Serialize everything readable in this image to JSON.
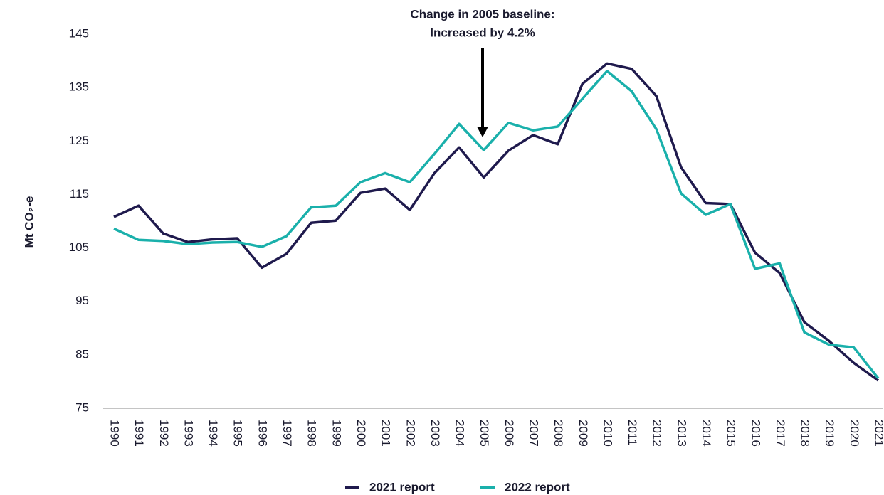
{
  "chart_data": {
    "type": "line",
    "y_label": "Mt CO₂-e",
    "annotation": [
      "Change in 2005 baseline:",
      "Increased by 4.2%"
    ],
    "categories": [
      "1990",
      "1991",
      "1992",
      "1993",
      "1994",
      "1995",
      "1996",
      "1997",
      "1998",
      "1999",
      "2000",
      "2001",
      "2002",
      "2003",
      "2004",
      "2005",
      "2006",
      "2007",
      "2008",
      "2009",
      "2010",
      "2011",
      "2012",
      "2013",
      "2014",
      "2015",
      "2016",
      "2017",
      "2018",
      "2019",
      "2020",
      "2021"
    ],
    "series": [
      {
        "name": "2021 report",
        "color": "#1f1a4d",
        "values": [
          110.8,
          112.9,
          107.7,
          106.1,
          106.6,
          106.8,
          101.3,
          103.9,
          109.7,
          110.1,
          115.3,
          116.1,
          112.1,
          119.0,
          123.8,
          118.2,
          123.2,
          126.1,
          124.4,
          135.7,
          139.5,
          138.5,
          133.4,
          120.1,
          113.4,
          113.2,
          104.1,
          100.3,
          91.1,
          87.6,
          83.5,
          80.2
        ]
      },
      {
        "name": "2022 report",
        "color": "#1ab0ab",
        "values": [
          108.6,
          106.5,
          106.3,
          105.7,
          106.0,
          106.1,
          105.2,
          107.2,
          112.6,
          112.9,
          117.3,
          119.0,
          117.3,
          122.6,
          128.2,
          123.3,
          128.4,
          127.0,
          127.7,
          132.9,
          138.1,
          134.3,
          127.2,
          115.2,
          111.2,
          113.2,
          101.1,
          102.1,
          89.2,
          86.9,
          86.4,
          80.6
        ]
      }
    ],
    "ylim": [
      75,
      145
    ],
    "yticks": [
      75,
      85,
      95,
      105,
      115,
      125,
      135,
      145
    ],
    "grid": false,
    "legend": "bottom"
  }
}
